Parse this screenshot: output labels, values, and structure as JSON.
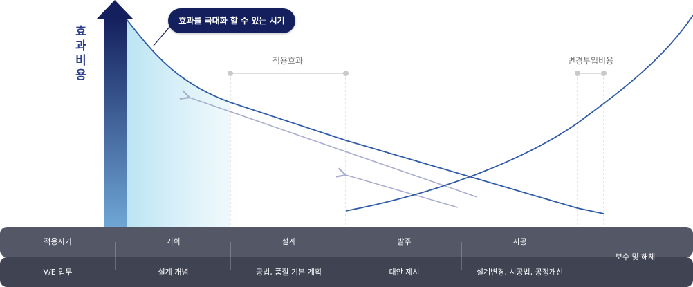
{
  "axis_title": "효과비용",
  "callout": "효과를 극대화 할 수 있는 시기",
  "band_labels": {
    "apply_effect": "적용효과",
    "change_cost": "변경투입비용"
  },
  "colors": {
    "arrow_top": "#14205e",
    "arrow_bottom": "#6fa6d6",
    "curve": "#2f5ba8",
    "guide_arrow": "#a9adcf",
    "shaded": "#b7e3f2",
    "band_marker": "#c9c9c9"
  },
  "table": {
    "row1_header": "적용시기",
    "row2_header": "V/E 업무",
    "phases": [
      "기획",
      "설계",
      "발주",
      "시공"
    ],
    "tasks": [
      "설계 개념",
      "공법, 품질 기본 계획",
      "대안 제시",
      "설계변경, 시공법, 공정개선"
    ],
    "last_cell": "보수 및 해체"
  }
}
